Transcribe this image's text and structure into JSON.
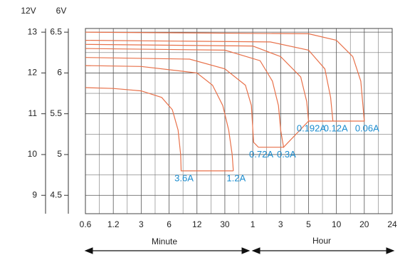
{
  "chart_data": {
    "type": "line",
    "y_unit_labels": [
      "12V",
      "6V"
    ],
    "x_group_labels": [
      "Minute",
      "Hour"
    ],
    "xlim": [
      0.6,
      1440
    ],
    "xticks": [
      0.6,
      1.2,
      3,
      6,
      12,
      30,
      {
        "value": 60,
        "label": "1"
      },
      {
        "value": 180,
        "label": "3"
      },
      {
        "value": 300,
        "label": "5"
      },
      {
        "value": 600,
        "label": "10"
      },
      {
        "value": 1200,
        "label": "20"
      },
      {
        "value": 1440,
        "label": "24"
      }
    ],
    "log_x": true,
    "ylim": [
      4.275,
      6.545
    ],
    "yticks": [
      4.5,
      5.0,
      5.5,
      6.0,
      6.5
    ],
    "y2lim": [
      8.55,
      13.09
    ],
    "y2ticks": [
      9,
      10,
      11,
      12,
      13
    ],
    "grid": true,
    "label_color": "#1a8ccf",
    "series": [
      {
        "name": "3.6A",
        "color": "#e8714a",
        "x": [
          0.6,
          1.2,
          3,
          5,
          6.5,
          7.5,
          8,
          8.1,
          37
        ],
        "values": [
          5.82,
          5.81,
          5.78,
          5.7,
          5.55,
          5.3,
          5.0,
          4.8,
          4.8
        ]
      },
      {
        "name": "1.2A",
        "color": "#e8714a",
        "x": [
          0.6,
          3,
          12,
          20,
          28,
          33,
          36,
          37
        ],
        "values": [
          6.09,
          6.08,
          6.0,
          5.85,
          5.6,
          5.3,
          5.0,
          4.8
        ]
      },
      {
        "name": "0.72A",
        "color": "#e8714a",
        "x": [
          0.6,
          10,
          30,
          50,
          58,
          62,
          75,
          190
        ],
        "values": [
          6.19,
          6.17,
          6.05,
          5.85,
          5.6,
          5.15,
          5.09,
          5.09
        ]
      },
      {
        "name": "0.3A",
        "color": "#e8714a",
        "x": [
          0.6,
          30,
          80,
          130,
          165,
          180,
          190,
          300
        ],
        "values": [
          6.3,
          6.28,
          6.15,
          5.9,
          5.6,
          5.3,
          5.09,
          5.41
        ]
      },
      {
        "name": "0.192A",
        "color": "#e8714a",
        "x": [
          0.6,
          60,
          180,
          260,
          290,
          300
        ],
        "values": [
          6.35,
          6.33,
          6.2,
          5.95,
          5.65,
          5.41
        ]
      },
      {
        "name": "0.12A",
        "color": "#e8714a",
        "x": [
          0.6,
          120,
          300,
          450,
          520,
          550
        ],
        "values": [
          6.4,
          6.38,
          6.28,
          6.05,
          5.7,
          5.41
        ]
      },
      {
        "name": "0.06A",
        "color": "#e8714a",
        "x": [
          0.6,
          300,
          600,
          900,
          1100,
          1200,
          300
        ],
        "values": [
          6.5,
          6.48,
          6.4,
          6.2,
          5.9,
          5.41,
          5.41
        ]
      }
    ]
  }
}
